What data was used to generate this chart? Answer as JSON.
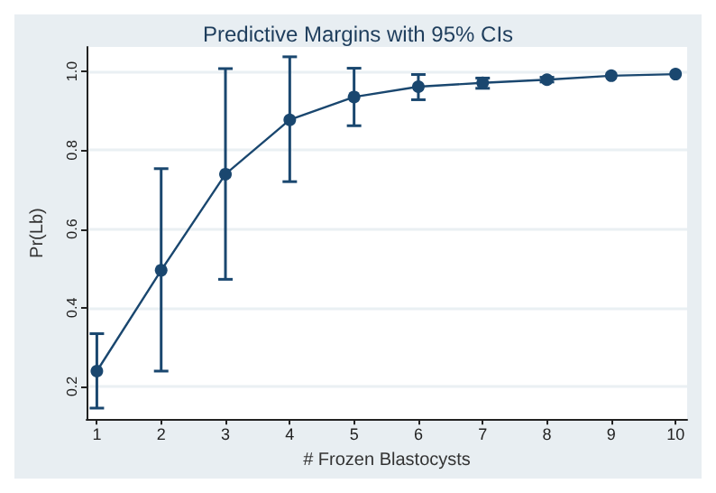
{
  "chart_data": {
    "type": "line",
    "title": "Predictive Margins with 95% CIs",
    "xlabel": "# Frozen Blastocysts",
    "ylabel": "Pr(Lb)",
    "x": [
      1,
      2,
      3,
      4,
      5,
      6,
      7,
      8,
      9,
      10
    ],
    "series": [
      {
        "color": "#1a476f",
        "values": [
          0.239,
          0.495,
          0.739,
          0.877,
          0.935,
          0.961,
          0.971,
          0.979,
          0.989,
          0.993
        ],
        "errors": [
          [
            0.145,
            0.334
          ],
          [
            0.239,
            0.753
          ],
          [
            0.472,
            1.007
          ],
          [
            0.72,
            1.037
          ],
          [
            0.862,
            1.008
          ],
          [
            0.928,
            0.992
          ],
          [
            0.957,
            0.983
          ],
          [
            0.973,
            0.985
          ],
          null,
          null
        ]
      }
    ],
    "xlim": [
      0.84,
      10.18
    ],
    "xticks": [
      1,
      2,
      3,
      4,
      5,
      6,
      7,
      8,
      9,
      10
    ],
    "ylim": [
      0.117,
      1.062
    ],
    "yticks": [
      {
        "value": 0.2,
        "label": "0.2"
      },
      {
        "value": 0.4,
        "label": "0.4"
      },
      {
        "value": 0.6,
        "label": "0.6"
      },
      {
        "value": 0.8,
        "label": "0.8"
      },
      {
        "value": 1,
        "label": "1.0"
      }
    ],
    "grid": "y",
    "marker": "circle",
    "line_style": "solid"
  }
}
